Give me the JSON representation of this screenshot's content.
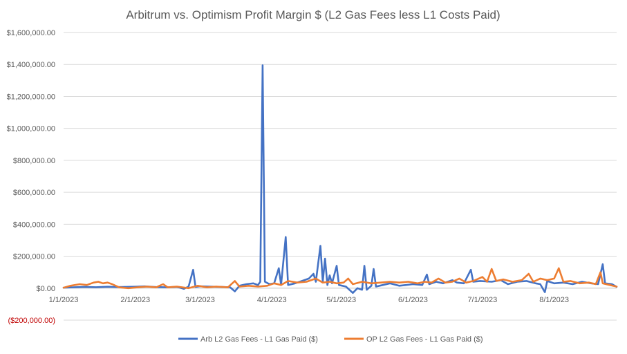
{
  "chart_data": {
    "type": "line",
    "title": "Arbitrum vs. Optimism Profit Margin $ (L2 Gas Fees less L1 Costs Paid)",
    "xlabel": "",
    "ylabel": "",
    "ylim": [
      -200000,
      1600000
    ],
    "yticks": [
      {
        "value": 1600000,
        "label": "$1,600,000.00"
      },
      {
        "value": 1400000,
        "label": "$1,400,000.00"
      },
      {
        "value": 1200000,
        "label": "$1,200,000.00"
      },
      {
        "value": 1000000,
        "label": "$1,000,000.00"
      },
      {
        "value": 800000,
        "label": "$800,000.00"
      },
      {
        "value": 600000,
        "label": "$600,000.00"
      },
      {
        "value": 400000,
        "label": "$400,000.00"
      },
      {
        "value": 200000,
        "label": "$200,000.00"
      },
      {
        "value": 0,
        "label": "$0.00"
      },
      {
        "value": -200000,
        "label": "($200,000.00)"
      }
    ],
    "xlim": [
      "2023-01-01",
      "2023-08-28"
    ],
    "xticks": [
      {
        "date": "2023-01-01",
        "label": "1/1/2023"
      },
      {
        "date": "2023-02-01",
        "label": "2/1/2023"
      },
      {
        "date": "2023-03-01",
        "label": "3/1/2023"
      },
      {
        "date": "2023-04-01",
        "label": "4/1/2023"
      },
      {
        "date": "2023-05-01",
        "label": "5/1/2023"
      },
      {
        "date": "2023-06-01",
        "label": "6/1/2023"
      },
      {
        "date": "2023-07-01",
        "label": "7/1/2023"
      },
      {
        "date": "2023-08-01",
        "label": "8/1/2023"
      }
    ],
    "grid": true,
    "legend_position": "bottom",
    "series": [
      {
        "name": "Arb L2 Gas Fees - L1 Gas Paid ($)",
        "color": "#4472C4",
        "points": [
          [
            "2023-01-01",
            3000
          ],
          [
            "2023-01-05",
            5000
          ],
          [
            "2023-01-10",
            8000
          ],
          [
            "2023-01-15",
            6000
          ],
          [
            "2023-01-20",
            9000
          ],
          [
            "2023-01-25",
            7000
          ],
          [
            "2023-02-01",
            9000
          ],
          [
            "2023-02-05",
            11000
          ],
          [
            "2023-02-10",
            7000
          ],
          [
            "2023-02-15",
            5000
          ],
          [
            "2023-02-19",
            8000
          ],
          [
            "2023-02-22",
            -4000
          ],
          [
            "2023-02-24",
            10000
          ],
          [
            "2023-02-26",
            115000
          ],
          [
            "2023-02-27",
            8000
          ],
          [
            "2023-03-01",
            12000
          ],
          [
            "2023-03-05",
            10000
          ],
          [
            "2023-03-10",
            8000
          ],
          [
            "2023-03-14",
            5000
          ],
          [
            "2023-03-16",
            -20000
          ],
          [
            "2023-03-18",
            15000
          ],
          [
            "2023-03-21",
            25000
          ],
          [
            "2023-03-24",
            30000
          ],
          [
            "2023-03-26",
            20000
          ],
          [
            "2023-03-27",
            40000
          ],
          [
            "2023-03-28",
            1395000
          ],
          [
            "2023-03-29",
            40000
          ],
          [
            "2023-03-31",
            25000
          ],
          [
            "2023-04-02",
            30000
          ],
          [
            "2023-04-04",
            125000
          ],
          [
            "2023-04-05",
            20000
          ],
          [
            "2023-04-07",
            320000
          ],
          [
            "2023-04-08",
            20000
          ],
          [
            "2023-04-11",
            30000
          ],
          [
            "2023-04-14",
            45000
          ],
          [
            "2023-04-17",
            60000
          ],
          [
            "2023-04-19",
            90000
          ],
          [
            "2023-04-20",
            40000
          ],
          [
            "2023-04-22",
            265000
          ],
          [
            "2023-04-23",
            40000
          ],
          [
            "2023-04-24",
            185000
          ],
          [
            "2023-04-25",
            20000
          ],
          [
            "2023-04-26",
            80000
          ],
          [
            "2023-04-27",
            30000
          ],
          [
            "2023-04-29",
            140000
          ],
          [
            "2023-04-30",
            20000
          ],
          [
            "2023-05-03",
            10000
          ],
          [
            "2023-05-06",
            -30000
          ],
          [
            "2023-05-08",
            0
          ],
          [
            "2023-05-10",
            -10000
          ],
          [
            "2023-05-11",
            140000
          ],
          [
            "2023-05-12",
            -10000
          ],
          [
            "2023-05-14",
            15000
          ],
          [
            "2023-05-15",
            120000
          ],
          [
            "2023-05-16",
            10000
          ],
          [
            "2023-05-19",
            20000
          ],
          [
            "2023-05-22",
            30000
          ],
          [
            "2023-05-26",
            15000
          ],
          [
            "2023-05-29",
            20000
          ],
          [
            "2023-06-01",
            25000
          ],
          [
            "2023-06-05",
            20000
          ],
          [
            "2023-06-07",
            85000
          ],
          [
            "2023-06-08",
            25000
          ],
          [
            "2023-06-11",
            40000
          ],
          [
            "2023-06-14",
            30000
          ],
          [
            "2023-06-18",
            50000
          ],
          [
            "2023-06-20",
            35000
          ],
          [
            "2023-06-23",
            30000
          ],
          [
            "2023-06-26",
            115000
          ],
          [
            "2023-06-27",
            40000
          ],
          [
            "2023-06-30",
            45000
          ],
          [
            "2023-07-05",
            40000
          ],
          [
            "2023-07-09",
            50000
          ],
          [
            "2023-07-12",
            25000
          ],
          [
            "2023-07-16",
            40000
          ],
          [
            "2023-07-20",
            45000
          ],
          [
            "2023-07-24",
            30000
          ],
          [
            "2023-07-26",
            25000
          ],
          [
            "2023-07-28",
            -25000
          ],
          [
            "2023-07-29",
            45000
          ],
          [
            "2023-08-01",
            30000
          ],
          [
            "2023-08-05",
            35000
          ],
          [
            "2023-08-09",
            25000
          ],
          [
            "2023-08-13",
            40000
          ],
          [
            "2023-08-17",
            30000
          ],
          [
            "2023-08-20",
            25000
          ],
          [
            "2023-08-22",
            150000
          ],
          [
            "2023-08-23",
            30000
          ],
          [
            "2023-08-26",
            25000
          ],
          [
            "2023-08-28",
            8000
          ]
        ]
      },
      {
        "name": "OP L2 Gas Fees - L1 Gas Paid ($)",
        "color": "#ED7D31",
        "points": [
          [
            "2023-01-01",
            3000
          ],
          [
            "2023-01-04",
            15000
          ],
          [
            "2023-01-08",
            25000
          ],
          [
            "2023-01-11",
            20000
          ],
          [
            "2023-01-14",
            35000
          ],
          [
            "2023-01-16",
            40000
          ],
          [
            "2023-01-18",
            30000
          ],
          [
            "2023-01-20",
            35000
          ],
          [
            "2023-01-22",
            25000
          ],
          [
            "2023-01-25",
            5000
          ],
          [
            "2023-01-29",
            0
          ],
          [
            "2023-02-02",
            5000
          ],
          [
            "2023-02-06",
            10000
          ],
          [
            "2023-02-10",
            5000
          ],
          [
            "2023-02-13",
            25000
          ],
          [
            "2023-02-15",
            5000
          ],
          [
            "2023-02-19",
            10000
          ],
          [
            "2023-02-24",
            0
          ],
          [
            "2023-02-28",
            15000
          ],
          [
            "2023-03-04",
            5000
          ],
          [
            "2023-03-08",
            10000
          ],
          [
            "2023-03-13",
            5000
          ],
          [
            "2023-03-16",
            45000
          ],
          [
            "2023-03-18",
            10000
          ],
          [
            "2023-03-22",
            15000
          ],
          [
            "2023-03-26",
            10000
          ],
          [
            "2023-03-30",
            15000
          ],
          [
            "2023-04-02",
            30000
          ],
          [
            "2023-04-05",
            20000
          ],
          [
            "2023-04-08",
            45000
          ],
          [
            "2023-04-12",
            35000
          ],
          [
            "2023-04-16",
            40000
          ],
          [
            "2023-04-20",
            60000
          ],
          [
            "2023-04-23",
            35000
          ],
          [
            "2023-04-26",
            40000
          ],
          [
            "2023-04-29",
            30000
          ],
          [
            "2023-05-02",
            35000
          ],
          [
            "2023-05-04",
            60000
          ],
          [
            "2023-05-06",
            25000
          ],
          [
            "2023-05-10",
            40000
          ],
          [
            "2023-05-14",
            30000
          ],
          [
            "2023-05-18",
            35000
          ],
          [
            "2023-05-22",
            40000
          ],
          [
            "2023-05-26",
            35000
          ],
          [
            "2023-05-30",
            40000
          ],
          [
            "2023-06-03",
            30000
          ],
          [
            "2023-06-06",
            40000
          ],
          [
            "2023-06-09",
            35000
          ],
          [
            "2023-06-12",
            60000
          ],
          [
            "2023-06-15",
            35000
          ],
          [
            "2023-06-18",
            40000
          ],
          [
            "2023-06-21",
            60000
          ],
          [
            "2023-06-24",
            35000
          ],
          [
            "2023-06-27",
            45000
          ],
          [
            "2023-07-01",
            70000
          ],
          [
            "2023-07-03",
            40000
          ],
          [
            "2023-07-05",
            120000
          ],
          [
            "2023-07-07",
            45000
          ],
          [
            "2023-07-10",
            55000
          ],
          [
            "2023-07-14",
            40000
          ],
          [
            "2023-07-18",
            50000
          ],
          [
            "2023-07-21",
            90000
          ],
          [
            "2023-07-23",
            40000
          ],
          [
            "2023-07-26",
            60000
          ],
          [
            "2023-07-29",
            50000
          ],
          [
            "2023-08-01",
            60000
          ],
          [
            "2023-08-03",
            125000
          ],
          [
            "2023-08-05",
            40000
          ],
          [
            "2023-08-08",
            45000
          ],
          [
            "2023-08-12",
            30000
          ],
          [
            "2023-08-16",
            35000
          ],
          [
            "2023-08-19",
            25000
          ],
          [
            "2023-08-21",
            100000
          ],
          [
            "2023-08-22",
            30000
          ],
          [
            "2023-08-25",
            20000
          ],
          [
            "2023-08-28",
            10000
          ]
        ]
      }
    ]
  }
}
